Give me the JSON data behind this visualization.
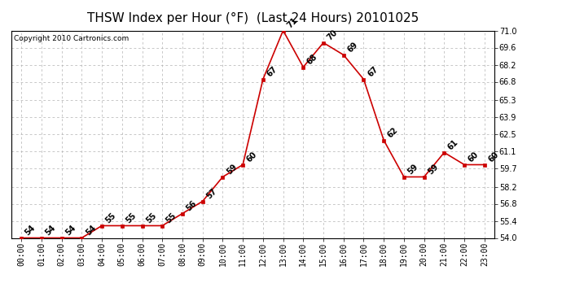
{
  "title": "THSW Index per Hour (°F)  (Last 24 Hours) 20101025",
  "copyright": "Copyright 2010 Cartronics.com",
  "hours": [
    "00:00",
    "01:00",
    "02:00",
    "03:00",
    "04:00",
    "05:00",
    "06:00",
    "07:00",
    "08:00",
    "09:00",
    "10:00",
    "11:00",
    "12:00",
    "13:00",
    "14:00",
    "15:00",
    "16:00",
    "17:00",
    "18:00",
    "19:00",
    "20:00",
    "21:00",
    "22:00",
    "23:00"
  ],
  "values": [
    54,
    54,
    54,
    54,
    55,
    55,
    55,
    55,
    56,
    57,
    59,
    60,
    67,
    71,
    68,
    70,
    69,
    67,
    62,
    59,
    59,
    61,
    60,
    60
  ],
  "ylim_min": 54.0,
  "ylim_max": 71.0,
  "yticks": [
    54.0,
    55.4,
    56.8,
    58.2,
    59.7,
    61.1,
    62.5,
    63.9,
    65.3,
    66.8,
    68.2,
    69.6,
    71.0
  ],
  "line_color": "#cc0000",
  "marker_color": "#cc0000",
  "bg_color": "#ffffff",
  "grid_color": "#b0b0b0",
  "title_fontsize": 11,
  "label_fontsize": 7,
  "annotation_fontsize": 7,
  "copyright_fontsize": 6.5
}
